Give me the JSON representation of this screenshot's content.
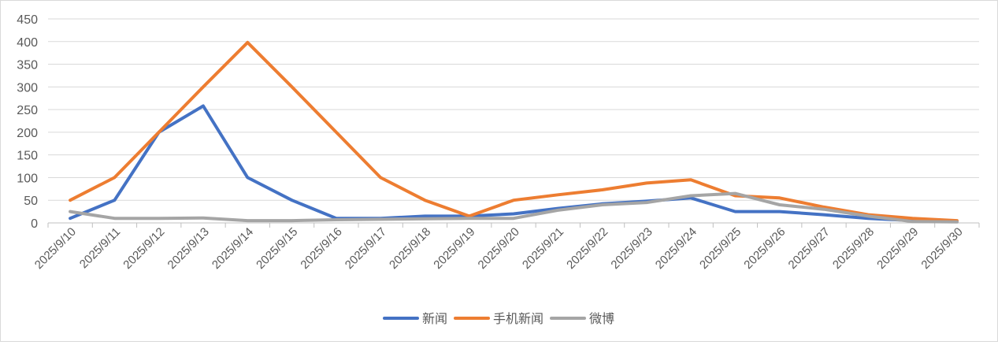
{
  "chart_data": {
    "type": "line",
    "title": "",
    "xlabel": "",
    "ylabel": "",
    "ylim": [
      0,
      450
    ],
    "yticks": [
      0,
      50,
      100,
      150,
      200,
      250,
      300,
      350,
      400,
      450
    ],
    "grid": true,
    "legend_position": "bottom",
    "categories": [
      "2025/9/10",
      "2025/9/11",
      "2025/9/12",
      "2025/9/13",
      "2025/9/14",
      "2025/9/15",
      "2025/9/16",
      "2025/9/17",
      "2025/9/18",
      "2025/9/19",
      "2025/9/20",
      "2025/9/21",
      "2025/9/22",
      "2025/9/23",
      "2025/9/24",
      "2025/9/25",
      "2025/9/26",
      "2025/9/27",
      "2025/9/28",
      "2025/9/29",
      "2025/9/30"
    ],
    "series": [
      {
        "name": "新闻",
        "color": "#4472C4",
        "values": [
          10,
          50,
          200,
          258,
          100,
          50,
          10,
          10,
          15,
          15,
          20,
          32,
          42,
          48,
          55,
          25,
          25,
          18,
          10,
          5,
          3
        ]
      },
      {
        "name": "手机新闻",
        "color": "#ED7D31",
        "values": [
          50,
          100,
          200,
          300,
          398,
          300,
          200,
          100,
          50,
          15,
          50,
          62,
          73,
          88,
          95,
          60,
          55,
          35,
          18,
          10,
          5
        ]
      },
      {
        "name": "微博",
        "color": "#A5A5A5",
        "values": [
          25,
          10,
          10,
          11,
          5,
          5,
          7,
          8,
          9,
          10,
          10,
          28,
          40,
          45,
          60,
          65,
          40,
          30,
          15,
          3,
          2
        ]
      }
    ]
  }
}
